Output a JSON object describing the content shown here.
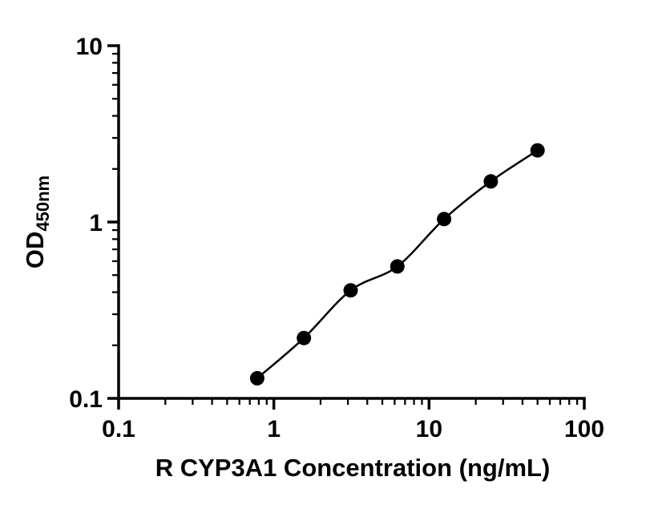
{
  "chart_data": {
    "type": "scatter",
    "series_name": "standard-curve",
    "x": [
      0.781,
      1.563,
      3.125,
      6.25,
      12.5,
      25,
      50
    ],
    "y": [
      0.13,
      0.22,
      0.41,
      0.56,
      1.04,
      1.7,
      2.55
    ],
    "line": true,
    "title": "",
    "xlabel": "R CYP3A1 Concentration (ng/mL)",
    "ylabel_main": "OD",
    "ylabel_sub": "450nm",
    "xscale": "log",
    "yscale": "log",
    "xlim": [
      0.1,
      100
    ],
    "ylim": [
      0.1,
      10
    ],
    "x_tick_values": [
      0.1,
      1,
      10,
      100
    ],
    "x_tick_labels": [
      "0.1",
      "1",
      "10",
      "100"
    ],
    "y_tick_values": [
      0.1,
      1,
      10
    ],
    "y_tick_labels": [
      "0.1",
      "1",
      "10"
    ],
    "grid": false,
    "legend": "none",
    "marker_color": "#000000",
    "line_color": "#000000",
    "axis_color": "#000000",
    "background": "#ffffff"
  }
}
